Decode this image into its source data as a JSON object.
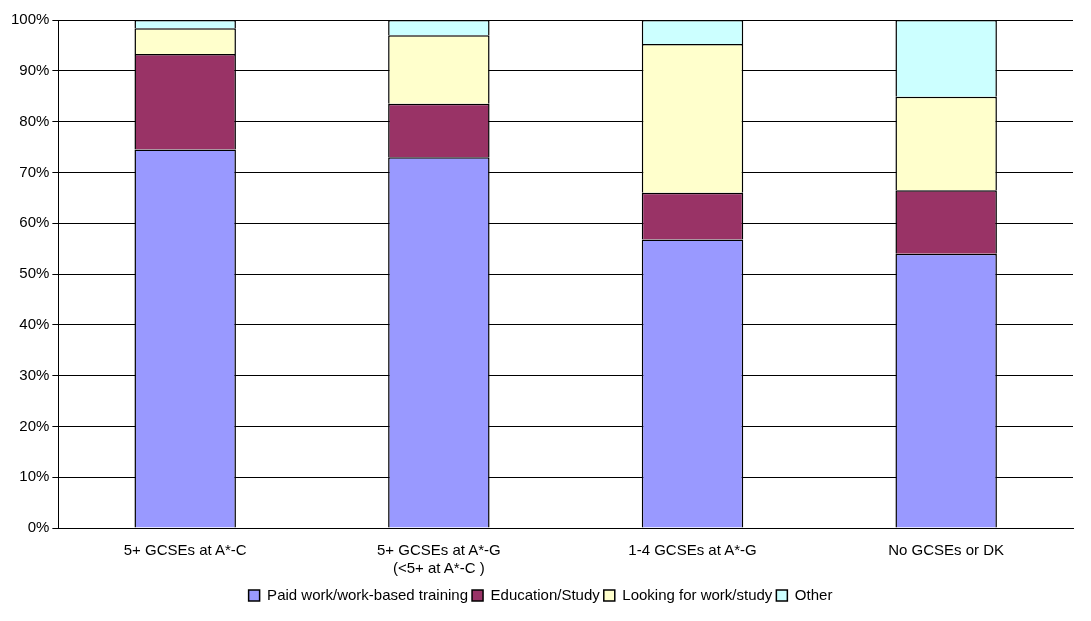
{
  "chart_data": {
    "type": "bar",
    "stacked": true,
    "categories": [
      "5+ GCSEs at A*-C",
      "5+ GCSEs at A*-G\n(<5+ at A*-C )",
      "1-4 GCSEs at A*-G",
      "No GCSEs or DK"
    ],
    "series": [
      {
        "name": "Paid work/work-based training",
        "color": "#9999ff",
        "values": [
          74.5,
          73,
          56.8,
          54
        ]
      },
      {
        "name": "Education/Study",
        "color": "#993366",
        "values": [
          18.8,
          10.5,
          9.2,
          12.5
        ]
      },
      {
        "name": "Looking for work/study",
        "color": "#ffffcc",
        "values": [
          5.1,
          13.5,
          29.3,
          18.4
        ]
      },
      {
        "name": "Other",
        "color": "#ccffff",
        "values": [
          1.6,
          3,
          4.7,
          15.1
        ]
      }
    ],
    "ylim": [
      0,
      100
    ],
    "yticks": [
      {
        "value": 0,
        "label": "0%"
      },
      {
        "value": 10,
        "label": "10%"
      },
      {
        "value": 20,
        "label": "20%"
      },
      {
        "value": 30,
        "label": "30%"
      },
      {
        "value": 40,
        "label": "40%"
      },
      {
        "value": 50,
        "label": "50%"
      },
      {
        "value": 60,
        "label": "60%"
      },
      {
        "value": 70,
        "label": "70%"
      },
      {
        "value": 80,
        "label": "80%"
      },
      {
        "value": 90,
        "label": "90%"
      },
      {
        "value": 100,
        "label": "100%"
      }
    ],
    "grid": "y",
    "legend": "bottom"
  }
}
